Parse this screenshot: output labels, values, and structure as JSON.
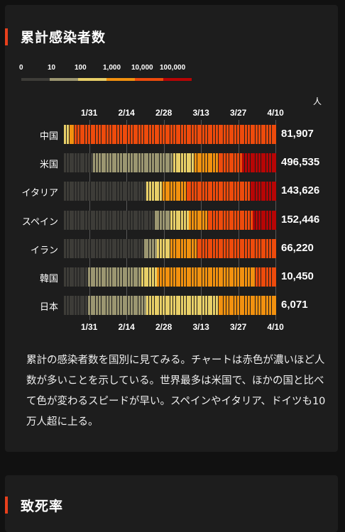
{
  "section1": {
    "title": "累計感染者数"
  },
  "legend": {
    "labels": [
      "0",
      "10",
      "100",
      "1,000",
      "10,000",
      "100,000"
    ],
    "colors": [
      "#3d3c38",
      "#9b9671",
      "#e8cf68",
      "#f2910f",
      "#ee4b0c",
      "#b80505"
    ]
  },
  "chart_data": {
    "type": "heatmap",
    "unit": "人",
    "x_tick_labels": [
      "1/31",
      "2/14",
      "2/28",
      "3/13",
      "3/27",
      "4/10"
    ],
    "x_range": [
      "1/22",
      "4/10"
    ],
    "color_scale": "log10 bins: 0-10, 10-100, 100-1,000, 1,000-10,000, 10,000-100,000, 100,000+",
    "rows": [
      {
        "country": "中国",
        "total": "81,907",
        "segments": [
          {
            "start": "1/22",
            "end": "1/23",
            "bin": 2
          },
          {
            "start": "1/24",
            "end": "1/25",
            "bin": 3
          },
          {
            "start": "1/26",
            "end": "4/10",
            "bin": 4
          }
        ]
      },
      {
        "country": "米国",
        "total": "496,535",
        "segments": [
          {
            "start": "1/22",
            "end": "2/1",
            "bin": 0
          },
          {
            "start": "2/2",
            "end": "3/2",
            "bin": 1
          },
          {
            "start": "3/3",
            "end": "3/10",
            "bin": 2
          },
          {
            "start": "3/11",
            "end": "3/19",
            "bin": 3
          },
          {
            "start": "3/20",
            "end": "3/28",
            "bin": 4
          },
          {
            "start": "3/29",
            "end": "4/10",
            "bin": 5
          }
        ]
      },
      {
        "country": "イタリア",
        "total": "143,626",
        "segments": [
          {
            "start": "1/22",
            "end": "2/21",
            "bin": 0
          },
          {
            "start": "2/22",
            "end": "2/27",
            "bin": 2
          },
          {
            "start": "2/28",
            "end": "3/7",
            "bin": 3
          },
          {
            "start": "3/8",
            "end": "3/31",
            "bin": 4
          },
          {
            "start": "4/1",
            "end": "4/10",
            "bin": 5
          }
        ]
      },
      {
        "country": "スペイン",
        "total": "152,446",
        "segments": [
          {
            "start": "1/22",
            "end": "2/24",
            "bin": 0
          },
          {
            "start": "2/25",
            "end": "3/1",
            "bin": 1
          },
          {
            "start": "3/2",
            "end": "3/8",
            "bin": 2
          },
          {
            "start": "3/9",
            "end": "3/15",
            "bin": 3
          },
          {
            "start": "3/16",
            "end": "4/1",
            "bin": 4
          },
          {
            "start": "4/2",
            "end": "4/10",
            "bin": 5
          }
        ]
      },
      {
        "country": "イラン",
        "total": "66,220",
        "segments": [
          {
            "start": "1/22",
            "end": "2/20",
            "bin": 0
          },
          {
            "start": "2/21",
            "end": "2/25",
            "bin": 1
          },
          {
            "start": "2/26",
            "end": "3/1",
            "bin": 2
          },
          {
            "start": "3/2",
            "end": "3/11",
            "bin": 3
          },
          {
            "start": "3/12",
            "end": "4/10",
            "bin": 4
          }
        ]
      },
      {
        "country": "韓国",
        "total": "10,450",
        "segments": [
          {
            "start": "1/22",
            "end": "1/30",
            "bin": 0
          },
          {
            "start": "1/31",
            "end": "2/19",
            "bin": 1
          },
          {
            "start": "2/20",
            "end": "2/25",
            "bin": 2
          },
          {
            "start": "2/26",
            "end": "4/2",
            "bin": 3
          },
          {
            "start": "4/3",
            "end": "4/10",
            "bin": 4
          }
        ]
      },
      {
        "country": "日本",
        "total": "6,071",
        "segments": [
          {
            "start": "1/22",
            "end": "1/30",
            "bin": 0
          },
          {
            "start": "1/31",
            "end": "2/21",
            "bin": 1
          },
          {
            "start": "2/22",
            "end": "3/19",
            "bin": 2
          },
          {
            "start": "3/20",
            "end": "4/10",
            "bin": 3
          }
        ]
      }
    ]
  },
  "description": "累計の感染者数を国別に見てみる。チャートは赤色が濃いほど人数が多いことを示している。世界最多は米国で、ほかの国と比べて色が変わるスピードが早い。スペインやイタリア、ドイツも10万人超に上る。",
  "section2": {
    "title": "致死率"
  }
}
